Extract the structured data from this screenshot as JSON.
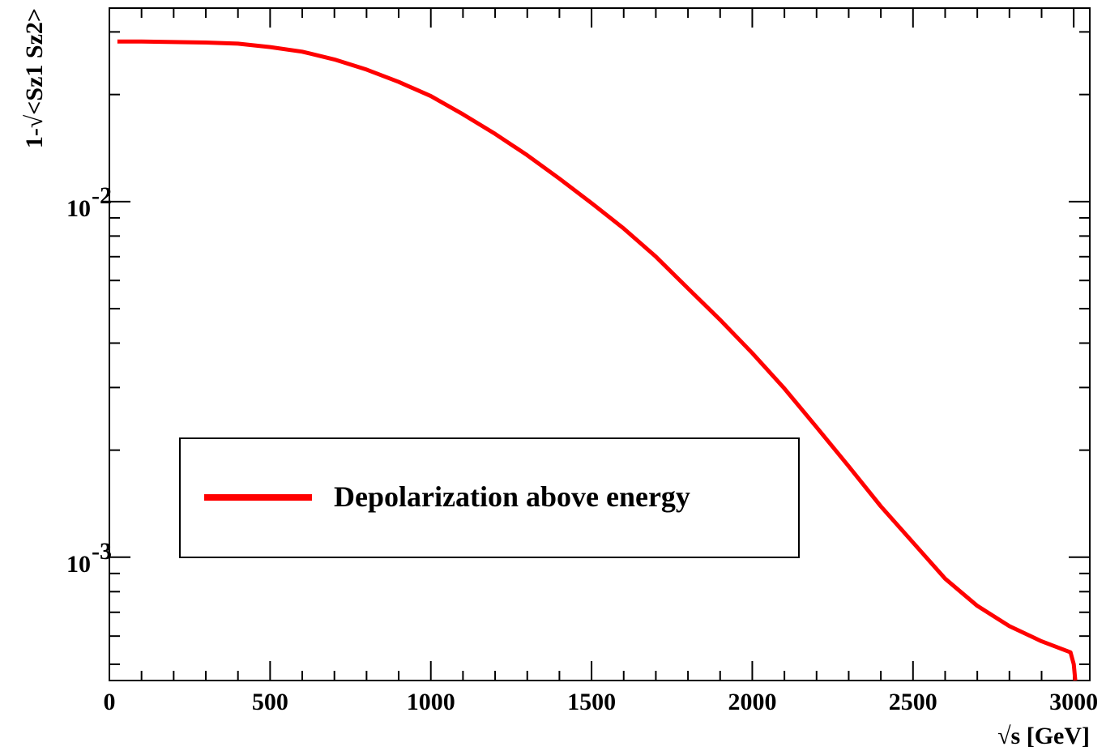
{
  "chart_data": {
    "type": "line",
    "title": "",
    "xlabel": "√s [GeV]",
    "ylabel": "1-√<Sz1 Sz2>",
    "xlim": [
      0,
      3050
    ],
    "ylim": [
      0.00045,
      0.035
    ],
    "yscale": "log",
    "grid": false,
    "legend_position": "center-left",
    "x_tick_labels": [
      "0",
      "500",
      "1000",
      "1500",
      "2000",
      "2500",
      "3000"
    ],
    "x_tick_values": [
      0,
      500,
      1000,
      1500,
      2000,
      2500,
      3000
    ],
    "y_tick_labels": [
      {
        "base": "10",
        "exp": "-2",
        "value": 0.01
      },
      {
        "base": "10",
        "exp": "-3",
        "value": 0.001
      }
    ],
    "series": [
      {
        "name": "Depolarization above energy",
        "color": "#ff0000",
        "x": [
          25,
          100,
          200,
          300,
          400,
          500,
          600,
          700,
          800,
          900,
          1000,
          1100,
          1200,
          1300,
          1400,
          1500,
          1600,
          1700,
          1800,
          1900,
          2000,
          2100,
          2200,
          2300,
          2400,
          2500,
          2600,
          2700,
          2800,
          2900,
          2990,
          3000,
          3005
        ],
        "y": [
          0.0282,
          0.0282,
          0.0281,
          0.028,
          0.0278,
          0.0272,
          0.0264,
          0.0251,
          0.0235,
          0.0217,
          0.0198,
          0.0176,
          0.0155,
          0.0135,
          0.0116,
          0.0099,
          0.0084,
          0.007,
          0.0057,
          0.00465,
          0.00375,
          0.00298,
          0.00232,
          0.0018,
          0.00139,
          0.0011,
          0.00087,
          0.00073,
          0.00064,
          0.00058,
          0.00054,
          0.0005,
          0.00045
        ]
      }
    ]
  }
}
